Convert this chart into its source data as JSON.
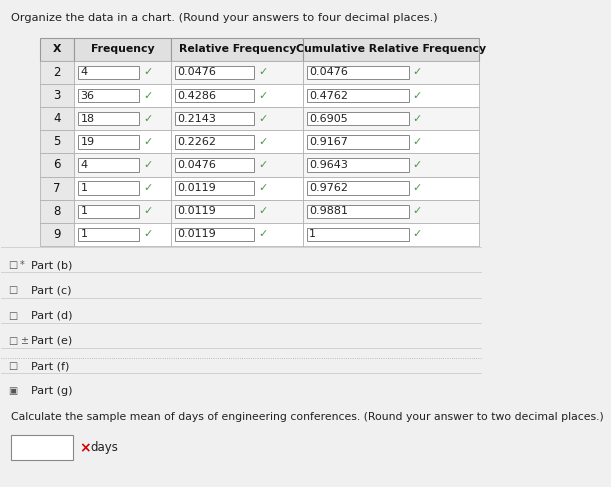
{
  "title": "Organize the data in a chart. (Round your answers to four decimal places.)",
  "headers": [
    "X",
    "Frequency",
    "Relative Frequency",
    "Cumulative Relative Frequency"
  ],
  "rows": [
    {
      "x": "2",
      "freq": "4",
      "rel_freq": "0.0476",
      "cum_rel_freq": "0.0476"
    },
    {
      "x": "3",
      "freq": "36",
      "rel_freq": "0.4286",
      "cum_rel_freq": "0.4762"
    },
    {
      "x": "4",
      "freq": "18",
      "rel_freq": "0.2143",
      "cum_rel_freq": "0.6905"
    },
    {
      "x": "5",
      "freq": "19",
      "rel_freq": "0.2262",
      "cum_rel_freq": "0.9167"
    },
    {
      "x": "6",
      "freq": "4",
      "rel_freq": "0.0476",
      "cum_rel_freq": "0.9643"
    },
    {
      "x": "7",
      "freq": "1",
      "rel_freq": "0.0119",
      "cum_rel_freq": "0.9762"
    },
    {
      "x": "8",
      "freq": "1",
      "rel_freq": "0.0119",
      "cum_rel_freq": "0.9881"
    },
    {
      "x": "9",
      "freq": "1",
      "rel_freq": "0.0119",
      "cum_rel_freq": "1"
    }
  ],
  "part_display": [
    [
      "□",
      "*",
      "Part (b)"
    ],
    [
      "□",
      "",
      "Part (c)"
    ],
    [
      "□",
      "",
      "Part (d)"
    ],
    [
      "□",
      "±",
      "Part (e)"
    ],
    [
      "□",
      "",
      "Part (f)"
    ],
    [
      "▣",
      "",
      "Part (g)"
    ]
  ],
  "part_g_text": "Calculate the sample mean of days of engineering conferences. (Round your answer to two decimal places.)",
  "bg_color": "#f0f0f0",
  "check_color": "#4a9a4a",
  "x_color": "#cc0000"
}
